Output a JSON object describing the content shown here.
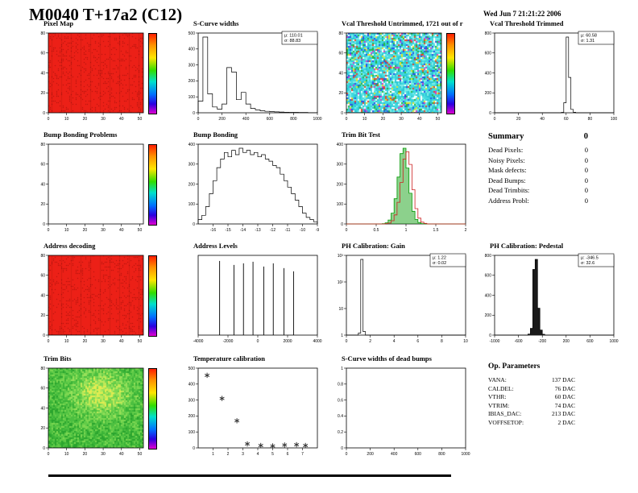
{
  "header": {
    "title": "M0040 T+17a2 (C12)",
    "date": "Wed Jun  7 21:21:22 2006"
  },
  "summary": {
    "title": "Summary",
    "total": "0",
    "rows": [
      {
        "label": "Dead Pixels:",
        "value": "0"
      },
      {
        "label": "Noisy Pixels:",
        "value": "0"
      },
      {
        "label": "Mask defects:",
        "value": "0"
      },
      {
        "label": "Dead Bumps:",
        "value": "0"
      },
      {
        "label": "Dead Trimbits:",
        "value": "0"
      },
      {
        "label": "Address Probl:",
        "value": "0"
      }
    ]
  },
  "op_parameters": {
    "title": "Op. Parameters",
    "rows": [
      {
        "label": "VANA:",
        "value": "137 DAC"
      },
      {
        "label": "CALDEL:",
        "value": "76 DAC"
      },
      {
        "label": "VTHR:",
        "value": "60 DAC"
      },
      {
        "label": "VTRIM:",
        "value": "74 DAC"
      },
      {
        "label": "IBIAS_DAC:",
        "value": "213 DAC"
      },
      {
        "label": "VOFFSETOP:",
        "value": "2 DAC"
      }
    ]
  },
  "chart_data": [
    {
      "id": "pixel-map",
      "title": "Pixel Map",
      "type": "heatmap",
      "style": "solid-red",
      "scalebar": true,
      "xlim": [
        0,
        52
      ],
      "ylim": [
        0,
        80
      ],
      "xticks": [
        "0",
        "10",
        "20",
        "30",
        "40",
        "50"
      ],
      "yticks": [
        "0",
        "20",
        "40",
        "60",
        "80"
      ]
    },
    {
      "id": "scurve-widths",
      "title": "S-Curve widths",
      "type": "hist",
      "stats": {
        "mu": "110.01",
        "sigma": "88.83"
      },
      "xlim": [
        0,
        1000
      ],
      "values": [
        80,
        520,
        130,
        40,
        25,
        60,
        310,
        280,
        90,
        140,
        60,
        30,
        20,
        14,
        10,
        8,
        6,
        5,
        4,
        3,
        3,
        2,
        2,
        1,
        1
      ],
      "xticks": [
        "0",
        "200",
        "400",
        "600",
        "800",
        "1000"
      ],
      "yticks": [
        "0",
        "100",
        "200",
        "300",
        "400",
        "500"
      ]
    },
    {
      "id": "vcal-threshold-untrimmed",
      "title": "Vcal Threshold Untrimmed, 1721 out of r",
      "type": "heatmap",
      "style": "noise-cyan",
      "scalebar": true,
      "xlim": [
        0,
        52
      ],
      "ylim": [
        0,
        80
      ],
      "xticks": [
        "0",
        "10",
        "20",
        "30",
        "40",
        "50"
      ],
      "yticks": [
        "0",
        "20",
        "40",
        "60",
        "80"
      ]
    },
    {
      "id": "vcal-threshold-trimmed",
      "title": "Vcal Threshold Trimmed",
      "type": "hist",
      "stats": {
        "mu": "60.58",
        "sigma": "1.31"
      },
      "xlim": [
        0,
        100
      ],
      "values": [
        0,
        0,
        0,
        0,
        0,
        0,
        0,
        0,
        0,
        0,
        0,
        0,
        0,
        0,
        0,
        0,
        0,
        0,
        0,
        0,
        0,
        0,
        0,
        0,
        0,
        0,
        0,
        0,
        5,
        120,
        900,
        420,
        40,
        6,
        0,
        0,
        0,
        0,
        0,
        0,
        0,
        0,
        0,
        0,
        0,
        0,
        0,
        0,
        0,
        0
      ],
      "xticks": [
        "0",
        "20",
        "40",
        "60",
        "80",
        "100"
      ],
      "yticks": [
        "0",
        "200",
        "400",
        "600",
        "800"
      ]
    },
    {
      "id": "bump-bonding-problems",
      "title": "Bump Bonding Problems",
      "type": "heatmap",
      "style": "empty",
      "scalebar": true,
      "xlim": [
        0,
        52
      ],
      "ylim": [
        0,
        80
      ],
      "xticks": [
        "0",
        "10",
        "20",
        "30",
        "40",
        "50"
      ],
      "yticks": [
        "0",
        "20",
        "40",
        "60",
        "80"
      ]
    },
    {
      "id": "bump-bonding",
      "title": "Bump Bonding",
      "type": "hist",
      "xlim": [
        -17,
        -9
      ],
      "values": [
        24,
        48,
        96,
        168,
        240,
        312,
        360,
        396,
        372,
        408,
        384,
        420,
        396,
        408,
        384,
        396,
        372,
        384,
        360,
        348,
        324,
        312,
        276,
        240,
        204,
        168,
        132,
        96,
        60,
        36,
        24,
        12
      ],
      "xticks": [
        "-16",
        "-15",
        "-14",
        "-13",
        "-12",
        "-11",
        "-10",
        "-9"
      ],
      "yticks": [
        "0",
        "100",
        "200",
        "300",
        "400"
      ]
    },
    {
      "id": "trim-bit-test",
      "title": "Trim Bit Test",
      "type": "hist-multi",
      "xlim": [
        0,
        2
      ],
      "series": [
        {
          "name": "trim-result",
          "color": "#009900",
          "fill": true,
          "values": [
            0,
            0,
            0,
            0,
            0,
            0,
            0,
            0,
            0,
            0,
            0,
            0,
            2,
            6,
            22,
            60,
            140,
            260,
            390,
            420,
            310,
            170,
            70,
            25,
            8,
            2,
            0,
            0,
            0,
            0,
            0,
            0,
            0,
            0,
            0,
            0,
            0,
            0,
            0,
            0
          ]
        },
        {
          "name": "trim-reference",
          "color": "#cc2020",
          "fill": false,
          "values": [
            0,
            0,
            0,
            0,
            0,
            0,
            0,
            0,
            0,
            0,
            0,
            0,
            0,
            2,
            5,
            18,
            50,
            120,
            230,
            360,
            400,
            330,
            190,
            85,
            32,
            10,
            3,
            0,
            0,
            0,
            0,
            0,
            0,
            0,
            0,
            0,
            0,
            0,
            0,
            0
          ]
        }
      ],
      "xticks": [
        "0",
        "0.5",
        "1",
        "1.5",
        "2"
      ],
      "yticks": [
        "0",
        "100",
        "200",
        "300",
        "400"
      ]
    },
    {
      "id": "address-decoding",
      "title": "Address decoding",
      "type": "heatmap",
      "style": "solid-red",
      "scalebar": true,
      "xlim": [
        0,
        52
      ],
      "ylim": [
        0,
        80
      ],
      "xticks": [
        "0",
        "10",
        "20",
        "30",
        "40",
        "50"
      ],
      "yticks": [
        "0",
        "20",
        "40",
        "60",
        "80"
      ]
    },
    {
      "id": "address-levels",
      "title": "Address Levels",
      "type": "spikes",
      "xlim": [
        -4000,
        4000
      ],
      "spikes": [
        {
          "x": -2560,
          "h": 0.93
        },
        {
          "x": -1600,
          "h": 0.88
        },
        {
          "x": -960,
          "h": 0.9
        },
        {
          "x": -320,
          "h": 0.92
        },
        {
          "x": 400,
          "h": 0.86
        },
        {
          "x": 1040,
          "h": 0.9
        },
        {
          "x": 1760,
          "h": 0.84
        },
        {
          "x": 2400,
          "h": 0.8
        }
      ],
      "xticks": [
        "-4000",
        "-2000",
        "0",
        "2000",
        "4000"
      ],
      "yticks": []
    },
    {
      "id": "ph-calibration-gain",
      "title": "PH Calibration: Gain",
      "type": "hist",
      "stats": {
        "mu": "1.22",
        "sigma": "0.02"
      },
      "xlim": [
        0,
        10
      ],
      "values": [
        0,
        0,
        0,
        0,
        0,
        40,
        1500,
        70,
        0,
        0,
        0,
        0,
        0,
        0,
        0,
        0,
        0,
        0,
        0,
        0,
        0,
        0,
        0,
        0,
        0,
        0,
        0,
        0,
        0,
        0,
        0,
        0,
        0,
        0,
        0,
        0,
        0,
        0,
        0,
        0,
        0,
        0,
        0,
        0,
        0,
        0,
        0,
        0,
        0,
        0
      ],
      "xticks": [
        "0",
        "2",
        "4",
        "6",
        "8",
        "10"
      ],
      "yticks": [
        "1",
        "10",
        "10²",
        "10³"
      ]
    },
    {
      "id": "ph-calibration-pedestal",
      "title": "PH Calibration: Pedestal",
      "type": "hist",
      "fill": "#1a1a1a",
      "stats": {
        "mu": "-346.5",
        "sigma": "32.6"
      },
      "xlim": [
        -1000,
        1000
      ],
      "values": [
        0,
        0,
        0,
        0,
        0,
        0,
        0,
        0,
        0,
        0,
        0,
        0,
        0,
        0,
        12,
        80,
        780,
        900,
        320,
        60,
        10,
        0,
        0,
        0,
        0,
        0,
        0,
        0,
        0,
        0,
        0,
        0,
        0,
        0,
        0,
        0,
        0,
        0,
        0,
        0,
        0,
        0,
        0,
        0,
        0,
        0,
        0,
        0,
        0,
        0
      ],
      "xticks": [
        "-1000",
        "-600",
        "-200",
        "200",
        "600",
        "1000"
      ],
      "yticks": [
        "0",
        "200",
        "400",
        "600",
        "800"
      ]
    },
    {
      "id": "trim-bits",
      "title": "Trim Bits",
      "type": "heatmap",
      "style": "noise-green",
      "scalebar": true,
      "xlim": [
        0,
        52
      ],
      "ylim": [
        0,
        80
      ],
      "xticks": [
        "0",
        "10",
        "20",
        "30",
        "40",
        "50"
      ],
      "yticks": [
        "0",
        "20",
        "40",
        "60",
        "80"
      ]
    },
    {
      "id": "temperature-calibration",
      "title": "Temperature calibration",
      "type": "scatter",
      "xlim": [
        0,
        8
      ],
      "ylim": [
        0,
        500
      ],
      "points": [
        [
          0.6,
          455
        ],
        [
          1.6,
          310
        ],
        [
          2.6,
          170
        ],
        [
          3.3,
          25
        ],
        [
          4.2,
          15
        ],
        [
          5.0,
          12
        ],
        [
          5.8,
          18
        ],
        [
          6.6,
          20
        ],
        [
          7.2,
          15
        ]
      ],
      "xticks": [
        "1",
        "2",
        "3",
        "4",
        "5",
        "6",
        "7"
      ],
      "yticks": [
        "0",
        "100",
        "200",
        "300",
        "400",
        "500"
      ]
    },
    {
      "id": "scurve-widths-dead-bumps",
      "title": "S-Curve widths of dead bumps",
      "type": "empty",
      "xlim": [
        0,
        1000
      ],
      "xticks": [
        "0",
        "200",
        "400",
        "600",
        "800",
        "1000"
      ],
      "yticks": [
        "0",
        "0.2",
        "0.4",
        "0.6",
        "0.8",
        "1"
      ]
    }
  ]
}
